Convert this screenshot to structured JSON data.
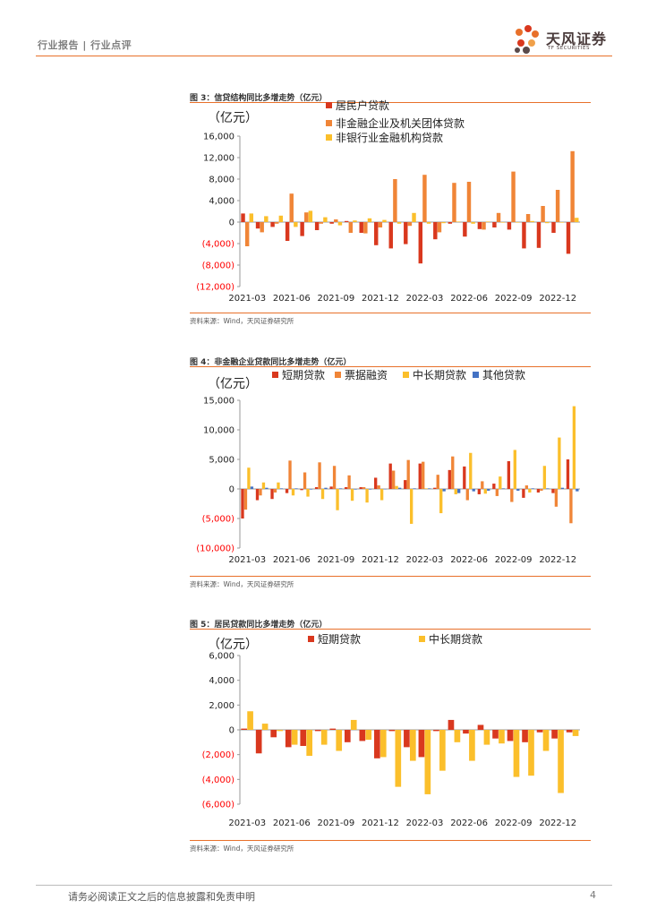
{
  "header": {
    "text": "行业报告 | 行业点评"
  },
  "logo": {
    "name_cn": "天风证券",
    "name_en": "TF SECURITIES",
    "icon": "flower-logo-icon"
  },
  "footer": {
    "disclaimer": "请务必阅读正文之后的信息披露和免责申明",
    "page": "4"
  },
  "colors": {
    "red": "#d9381e",
    "orange": "#f08537",
    "yellow": "#fbbf2b",
    "blue": "#4472c4",
    "neg_tick": "#ff0000",
    "rule": "#e8702a"
  },
  "charts": [
    {
      "title": "图 3：信贷结构同比多增走势（亿元）",
      "source": "资料来源：Wind，天风证券研究所",
      "unit": "（亿元）"
    },
    {
      "title": "图 4：非金融企业贷款同比多增走势（亿元）",
      "source": "资料来源：Wind，天风证券研究所",
      "unit": "（亿元）"
    },
    {
      "title": "图 5：居民贷款同比多增走势（亿元）",
      "source": "资料来源：Wind，天风证券研究所",
      "unit": "（亿元）"
    }
  ],
  "chart_data": [
    {
      "type": "bar",
      "title": "图 3：信贷结构同比多增走势（亿元）",
      "ylabel": "（亿元）",
      "ylim": [
        -12000,
        16000
      ],
      "yticks": [
        16000,
        12000,
        8000,
        4000,
        0,
        -4000,
        -8000,
        -12000
      ],
      "ytick_labels": [
        "16,000",
        "12,000",
        "8,000",
        "4,000",
        "0",
        "(4,000)",
        "(8,000)",
        "(12,000)"
      ],
      "xtick_labels": [
        "2021-03",
        "2021-06",
        "2021-09",
        "2021-12",
        "2022-03",
        "2022-06",
        "2022-09",
        "2022-12"
      ],
      "legend": "top",
      "categories": [
        "2021-03",
        "2021-04",
        "2021-05",
        "2021-06",
        "2021-07",
        "2021-08",
        "2021-09",
        "2021-10",
        "2021-11",
        "2021-12",
        "2022-01",
        "2022-02",
        "2022-03",
        "2022-04",
        "2022-05",
        "2022-06",
        "2022-07",
        "2022-08",
        "2022-09",
        "2022-10",
        "2022-11",
        "2022-12",
        "2023-01"
      ],
      "series": [
        {
          "name": "居民户贷款",
          "color": "#d9381e",
          "values": [
            1600,
            -1200,
            -900,
            -3500,
            -2600,
            -1500,
            -300,
            200,
            -2000,
            -4300,
            -4900,
            -4100,
            -7700,
            -3200,
            -300,
            -2700,
            -1300,
            -1000,
            -1400,
            -4900,
            -4800,
            -2000,
            -5900
          ]
        },
        {
          "name": "非金融企业及机关团体贷款",
          "color": "#f08537",
          "values": [
            -4500,
            -1900,
            -300,
            5300,
            1800,
            -300,
            500,
            -2000,
            -2100,
            -1000,
            8000,
            -700,
            8800,
            -1900,
            7300,
            7500,
            -1400,
            1700,
            9400,
            1500,
            3000,
            6000,
            13200
          ]
        },
        {
          "name": "非银行业金融机构贷款",
          "color": "#fbbf2b",
          "values": [
            1600,
            1100,
            1200,
            -900,
            2100,
            900,
            -600,
            300,
            700,
            400,
            -300,
            1700,
            -300,
            -200,
            100,
            -300,
            100,
            -100,
            -100,
            200,
            -200,
            -100,
            800
          ]
        }
      ]
    },
    {
      "type": "bar",
      "title": "图 4：非金融企业贷款同比多增走势（亿元）",
      "ylabel": "（亿元）",
      "ylim": [
        -10000,
        15000
      ],
      "yticks": [
        15000,
        10000,
        5000,
        0,
        -5000,
        -10000
      ],
      "ytick_labels": [
        "15,000",
        "10,000",
        "5,000",
        "0",
        "(5,000)",
        "(10,000)"
      ],
      "xtick_labels": [
        "2021-03",
        "2021-06",
        "2021-09",
        "2021-12",
        "2022-03",
        "2022-06",
        "2022-09",
        "2022-12"
      ],
      "legend": "top",
      "categories": [
        "2021-03",
        "2021-04",
        "2021-05",
        "2021-06",
        "2021-07",
        "2021-08",
        "2021-09",
        "2021-10",
        "2021-11",
        "2021-12",
        "2022-01",
        "2022-02",
        "2022-03",
        "2022-04",
        "2022-05",
        "2022-06",
        "2022-07",
        "2022-08",
        "2022-09",
        "2022-10",
        "2022-11",
        "2022-12",
        "2023-01"
      ],
      "series": [
        {
          "name": "短期贷款",
          "color": "#d9381e",
          "values": [
            -5000,
            -1900,
            -1700,
            -700,
            -200,
            300,
            400,
            300,
            300,
            1900,
            4300,
            1500,
            4300,
            200,
            3200,
            3800,
            -900,
            900,
            4700,
            -1500,
            -600,
            -700,
            5000
          ]
        },
        {
          "name": "票据融资",
          "color": "#f08537",
          "values": [
            -3500,
            -1100,
            -600,
            4800,
            2800,
            4500,
            3900,
            2300,
            300,
            600,
            3100,
            4900,
            4600,
            2400,
            5500,
            -1900,
            1300,
            -1200,
            -2200,
            600,
            -300,
            -3000,
            -5800
          ]
        },
        {
          "name": "中长期贷款",
          "color": "#fbbf2b",
          "values": [
            3600,
            1100,
            1100,
            -1100,
            -1300,
            -1700,
            -3600,
            -2000,
            -2300,
            -1900,
            500,
            -5900,
            100,
            -4100,
            -900,
            6100,
            -800,
            2100,
            6600,
            -600,
            3900,
            8700,
            14000
          ]
        },
        {
          "name": "其他贷款",
          "color": "#4472c4",
          "values": [
            400,
            200,
            100,
            100,
            -100,
            200,
            100,
            -100,
            -100,
            0,
            200,
            100,
            100,
            -400,
            -700,
            -400,
            -300,
            100,
            -300,
            100,
            100,
            200,
            -400
          ]
        }
      ]
    },
    {
      "type": "bar",
      "title": "图 5：居民贷款同比多增走势（亿元）",
      "ylabel": "（亿元）",
      "ylim": [
        -6000,
        6000
      ],
      "yticks": [
        6000,
        4000,
        2000,
        0,
        -2000,
        -4000,
        -6000
      ],
      "ytick_labels": [
        "6,000",
        "4,000",
        "2,000",
        "0",
        "(2,000)",
        "(4,000)",
        "(6,000)"
      ],
      "xtick_labels": [
        "2021-03",
        "2021-06",
        "2021-09",
        "2021-12",
        "2022-03",
        "2022-06",
        "2022-09",
        "2022-12"
      ],
      "legend": "top",
      "categories": [
        "2021-03",
        "2021-04",
        "2021-05",
        "2021-06",
        "2021-07",
        "2021-08",
        "2021-09",
        "2021-10",
        "2021-11",
        "2021-12",
        "2022-01",
        "2022-02",
        "2022-03",
        "2022-04",
        "2022-05",
        "2022-06",
        "2022-07",
        "2022-08",
        "2022-09",
        "2022-10",
        "2022-11",
        "2022-12",
        "2023-01"
      ],
      "series": [
        {
          "name": "短期贷款",
          "color": "#d9381e",
          "values": [
            100,
            -1900,
            -600,
            -1400,
            -1300,
            -100,
            100,
            -1000,
            -900,
            -2300,
            -100,
            -1400,
            -2200,
            -100,
            800,
            -300,
            400,
            -700,
            -900,
            -1000,
            -200,
            -700,
            -200
          ]
        },
        {
          "name": "中长期贷款",
          "color": "#fbbf2b",
          "values": [
            1500,
            500,
            -100,
            -1200,
            -2100,
            -1200,
            -1700,
            800,
            -800,
            -2200,
            -4600,
            -2500,
            -5200,
            -3300,
            -1000,
            -2500,
            -1200,
            -1100,
            -3800,
            -3700,
            -1700,
            -5100,
            -500
          ]
        }
      ]
    }
  ]
}
